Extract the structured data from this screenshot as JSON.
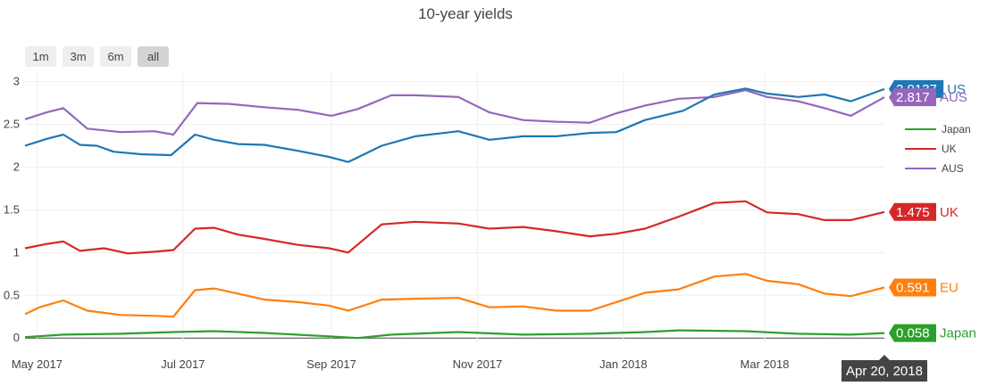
{
  "title": "10-year yields",
  "range_selector": {
    "buttons": [
      {
        "label": "1m",
        "active": false
      },
      {
        "label": "3m",
        "active": false
      },
      {
        "label": "6m",
        "active": false
      },
      {
        "label": "all",
        "active": true
      }
    ]
  },
  "hover_label": "Apr 20, 2018",
  "chart_data": {
    "type": "line",
    "title": "10-year yields",
    "xlabel": "",
    "ylabel": "",
    "x_range": [
      "2017-04-26",
      "2018-04-20"
    ],
    "ylim": [
      -0.05,
      3.1
    ],
    "yticks": [
      0,
      0.5,
      1,
      1.5,
      2,
      2.5,
      3
    ],
    "ytick_labels": [
      "0",
      "0.5",
      "1",
      "1.5",
      "2",
      "2.5",
      "3"
    ],
    "xticks": [
      {
        "date": "2017-05-01",
        "label": "May 2017"
      },
      {
        "date": "2017-07-01",
        "label": "Jul 2017"
      },
      {
        "date": "2017-09-01",
        "label": "Sep 2017"
      },
      {
        "date": "2017-11-01",
        "label": "Nov 2017"
      },
      {
        "date": "2018-01-01",
        "label": "Jan 2018"
      },
      {
        "date": "2018-03-01",
        "label": "Mar 2018"
      }
    ],
    "grid": true,
    "legend_position": "right",
    "legend": [
      "Japan",
      "UK",
      "AUS"
    ],
    "series": [
      {
        "name": "US",
        "color": "#1f77b4",
        "last_value": "2.9137",
        "legend": false,
        "points": [
          [
            "2017-04-26",
            2.25
          ],
          [
            "2017-05-05",
            2.33
          ],
          [
            "2017-05-12",
            2.38
          ],
          [
            "2017-05-19",
            2.26
          ],
          [
            "2017-05-26",
            2.25
          ],
          [
            "2017-06-02",
            2.18
          ],
          [
            "2017-06-14",
            2.15
          ],
          [
            "2017-06-26",
            2.14
          ],
          [
            "2017-07-06",
            2.38
          ],
          [
            "2017-07-14",
            2.32
          ],
          [
            "2017-07-24",
            2.27
          ],
          [
            "2017-08-04",
            2.26
          ],
          [
            "2017-08-18",
            2.19
          ],
          [
            "2017-08-31",
            2.12
          ],
          [
            "2017-09-08",
            2.06
          ],
          [
            "2017-09-22",
            2.25
          ],
          [
            "2017-10-06",
            2.36
          ],
          [
            "2017-10-24",
            2.42
          ],
          [
            "2017-11-06",
            2.32
          ],
          [
            "2017-11-20",
            2.36
          ],
          [
            "2017-12-04",
            2.36
          ],
          [
            "2017-12-18",
            2.4
          ],
          [
            "2017-12-29",
            2.41
          ],
          [
            "2018-01-10",
            2.55
          ],
          [
            "2018-01-26",
            2.66
          ],
          [
            "2018-02-08",
            2.85
          ],
          [
            "2018-02-21",
            2.92
          ],
          [
            "2018-03-02",
            2.86
          ],
          [
            "2018-03-15",
            2.82
          ],
          [
            "2018-03-26",
            2.85
          ],
          [
            "2018-04-06",
            2.77
          ],
          [
            "2018-04-20",
            2.9137
          ]
        ]
      },
      {
        "name": "AUS",
        "color": "#9467bd",
        "last_value": "2.817",
        "legend": true,
        "points": [
          [
            "2017-04-26",
            2.56
          ],
          [
            "2017-05-05",
            2.64
          ],
          [
            "2017-05-12",
            2.69
          ],
          [
            "2017-05-22",
            2.45
          ],
          [
            "2017-06-05",
            2.41
          ],
          [
            "2017-06-19",
            2.42
          ],
          [
            "2017-06-27",
            2.38
          ],
          [
            "2017-07-07",
            2.75
          ],
          [
            "2017-07-20",
            2.74
          ],
          [
            "2017-08-04",
            2.7
          ],
          [
            "2017-08-18",
            2.67
          ],
          [
            "2017-09-01",
            2.6
          ],
          [
            "2017-09-12",
            2.68
          ],
          [
            "2017-09-26",
            2.84
          ],
          [
            "2017-10-06",
            2.84
          ],
          [
            "2017-10-24",
            2.82
          ],
          [
            "2017-11-06",
            2.64
          ],
          [
            "2017-11-20",
            2.55
          ],
          [
            "2017-12-04",
            2.53
          ],
          [
            "2017-12-18",
            2.52
          ],
          [
            "2017-12-29",
            2.63
          ],
          [
            "2018-01-10",
            2.72
          ],
          [
            "2018-01-24",
            2.8
          ],
          [
            "2018-02-08",
            2.82
          ],
          [
            "2018-02-21",
            2.9
          ],
          [
            "2018-03-02",
            2.82
          ],
          [
            "2018-03-15",
            2.77
          ],
          [
            "2018-03-26",
            2.69
          ],
          [
            "2018-04-06",
            2.6
          ],
          [
            "2018-04-20",
            2.817
          ]
        ]
      },
      {
        "name": "UK",
        "color": "#d62728",
        "last_value": "1.475",
        "legend": true,
        "points": [
          [
            "2017-04-26",
            1.05
          ],
          [
            "2017-05-05",
            1.1
          ],
          [
            "2017-05-12",
            1.13
          ],
          [
            "2017-05-19",
            1.02
          ],
          [
            "2017-05-29",
            1.05
          ],
          [
            "2017-06-08",
            0.99
          ],
          [
            "2017-06-19",
            1.01
          ],
          [
            "2017-06-27",
            1.03
          ],
          [
            "2017-07-06",
            1.28
          ],
          [
            "2017-07-14",
            1.29
          ],
          [
            "2017-07-24",
            1.21
          ],
          [
            "2017-08-04",
            1.16
          ],
          [
            "2017-08-18",
            1.09
          ],
          [
            "2017-08-31",
            1.05
          ],
          [
            "2017-09-08",
            1.0
          ],
          [
            "2017-09-22",
            1.33
          ],
          [
            "2017-10-06",
            1.36
          ],
          [
            "2017-10-24",
            1.34
          ],
          [
            "2017-11-06",
            1.28
          ],
          [
            "2017-11-20",
            1.3
          ],
          [
            "2017-12-04",
            1.25
          ],
          [
            "2017-12-18",
            1.19
          ],
          [
            "2017-12-29",
            1.22
          ],
          [
            "2018-01-10",
            1.28
          ],
          [
            "2018-01-24",
            1.42
          ],
          [
            "2018-02-08",
            1.58
          ],
          [
            "2018-02-21",
            1.6
          ],
          [
            "2018-03-02",
            1.47
          ],
          [
            "2018-03-15",
            1.45
          ],
          [
            "2018-03-26",
            1.38
          ],
          [
            "2018-04-06",
            1.38
          ],
          [
            "2018-04-20",
            1.475
          ]
        ]
      },
      {
        "name": "EU",
        "color": "#ff7f0e",
        "last_value": "0.591",
        "legend": false,
        "points": [
          [
            "2017-04-26",
            0.28
          ],
          [
            "2017-05-02",
            0.36
          ],
          [
            "2017-05-12",
            0.44
          ],
          [
            "2017-05-22",
            0.32
          ],
          [
            "2017-06-05",
            0.27
          ],
          [
            "2017-06-19",
            0.26
          ],
          [
            "2017-06-27",
            0.25
          ],
          [
            "2017-07-06",
            0.56
          ],
          [
            "2017-07-14",
            0.58
          ],
          [
            "2017-07-24",
            0.52
          ],
          [
            "2017-08-04",
            0.45
          ],
          [
            "2017-08-18",
            0.42
          ],
          [
            "2017-08-31",
            0.38
          ],
          [
            "2017-09-08",
            0.32
          ],
          [
            "2017-09-22",
            0.45
          ],
          [
            "2017-10-06",
            0.46
          ],
          [
            "2017-10-24",
            0.47
          ],
          [
            "2017-11-06",
            0.36
          ],
          [
            "2017-11-20",
            0.37
          ],
          [
            "2017-12-04",
            0.32
          ],
          [
            "2017-12-18",
            0.32
          ],
          [
            "2017-12-29",
            0.42
          ],
          [
            "2018-01-10",
            0.53
          ],
          [
            "2018-01-24",
            0.57
          ],
          [
            "2018-02-08",
            0.72
          ],
          [
            "2018-02-21",
            0.75
          ],
          [
            "2018-03-02",
            0.67
          ],
          [
            "2018-03-15",
            0.63
          ],
          [
            "2018-03-26",
            0.52
          ],
          [
            "2018-04-06",
            0.49
          ],
          [
            "2018-04-20",
            0.591
          ]
        ]
      },
      {
        "name": "Japan",
        "color": "#2ca02c",
        "last_value": "0.058",
        "legend": true,
        "points": [
          [
            "2017-04-26",
            0.01
          ],
          [
            "2017-05-12",
            0.04
          ],
          [
            "2017-06-05",
            0.05
          ],
          [
            "2017-06-27",
            0.07
          ],
          [
            "2017-07-14",
            0.08
          ],
          [
            "2017-08-04",
            0.06
          ],
          [
            "2017-08-31",
            0.02
          ],
          [
            "2017-09-12",
            0.0
          ],
          [
            "2017-09-26",
            0.04
          ],
          [
            "2017-10-24",
            0.07
          ],
          [
            "2017-11-20",
            0.04
          ],
          [
            "2017-12-18",
            0.05
          ],
          [
            "2018-01-10",
            0.07
          ],
          [
            "2018-01-24",
            0.09
          ],
          [
            "2018-02-21",
            0.08
          ],
          [
            "2018-03-15",
            0.05
          ],
          [
            "2018-04-06",
            0.04
          ],
          [
            "2018-04-20",
            0.058
          ]
        ]
      }
    ]
  }
}
